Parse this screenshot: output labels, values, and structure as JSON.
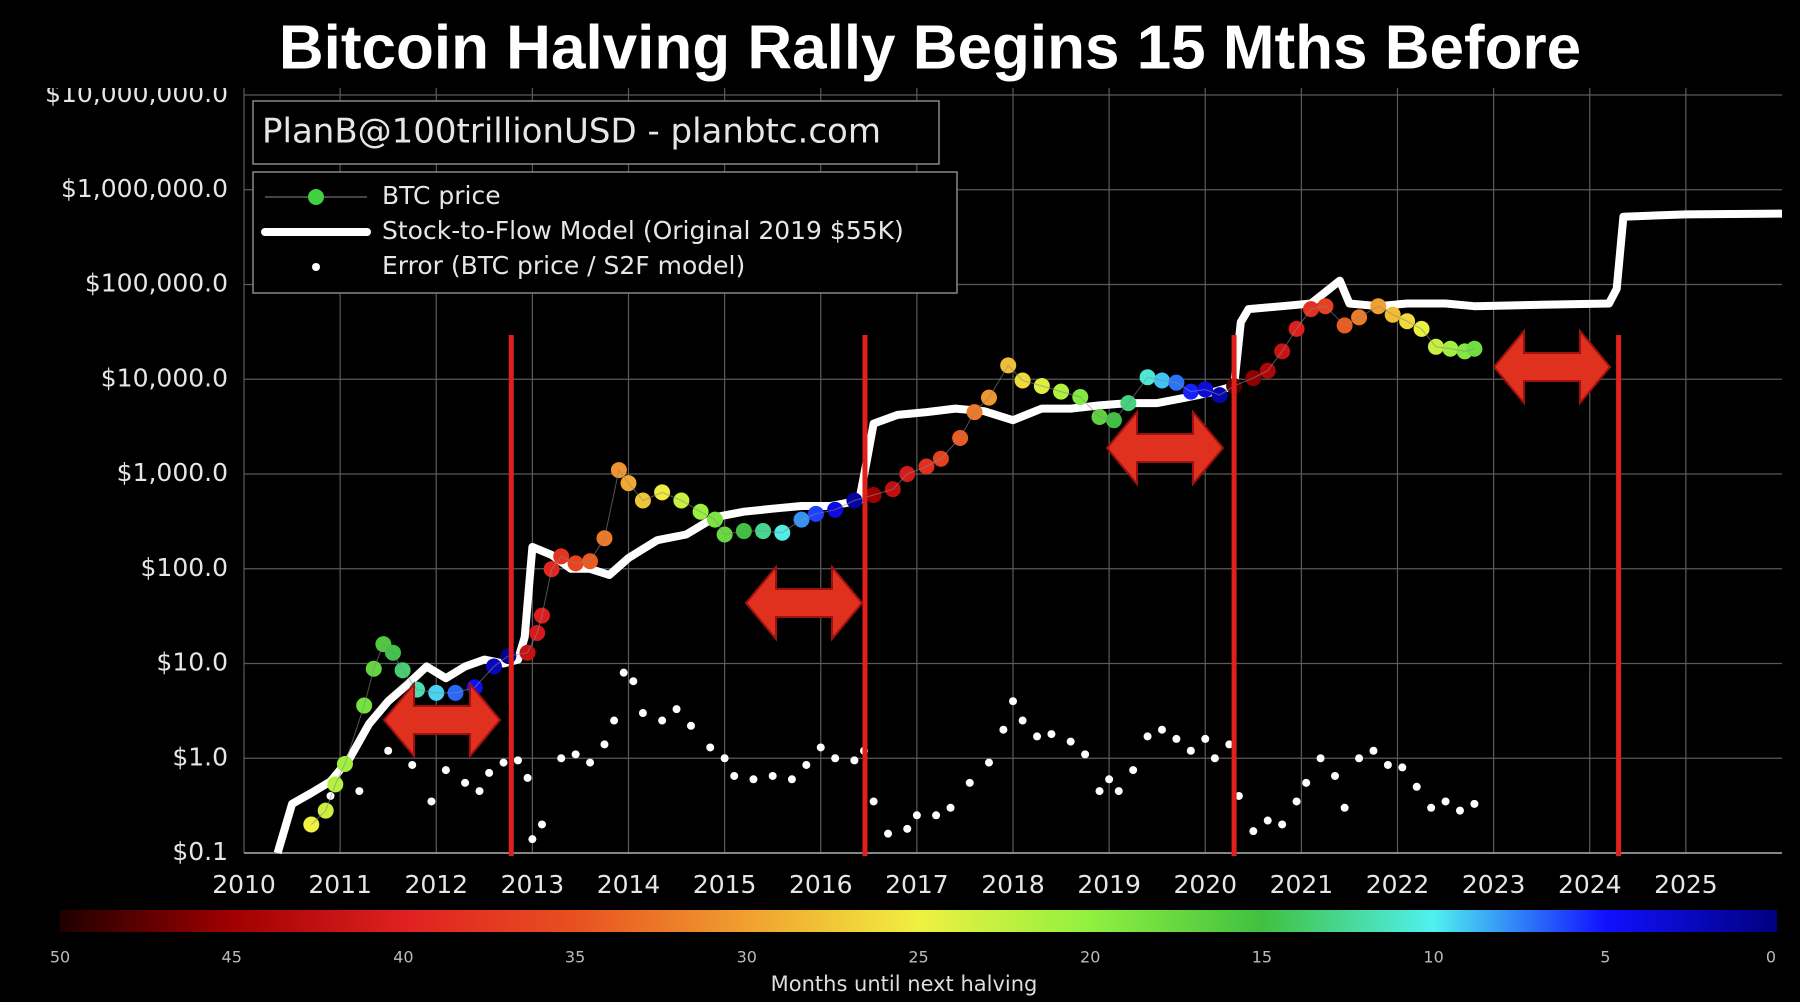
{
  "chart_data": {
    "type": "scatter",
    "title": "Bitcoin Halving Rally Begins 15 Mths Before",
    "watermark": "PlanB@100trillionUSD  -  planbtc.com",
    "log_y": true,
    "grid": true,
    "legend": "upper left",
    "xlim": [
      2010,
      2026
    ],
    "xticks": [
      2010,
      2011,
      2012,
      2013,
      2014,
      2015,
      2016,
      2017,
      2018,
      2019,
      2020,
      2021,
      2022,
      2023,
      2024,
      2025
    ],
    "ylim": [
      0.1,
      10000000
    ],
    "yticks": [
      {
        "value": 0.1,
        "label": "$0.1"
      },
      {
        "value": 1,
        "label": "$1.0"
      },
      {
        "value": 10,
        "label": "$10.0"
      },
      {
        "value": 100,
        "label": "$100.0"
      },
      {
        "value": 1000,
        "label": "$1,000.0"
      },
      {
        "value": 10000,
        "label": "$10,000.0"
      },
      {
        "value": 100000,
        "label": "$100,000.0"
      },
      {
        "value": 1000000,
        "label": "$1,000,000.0"
      },
      {
        "value": 10000000,
        "label": "$10,000,000.0"
      }
    ],
    "halvings": [
      2012.78,
      2016.46,
      2020.3,
      2024.3
    ],
    "halving_color": "#e0201b",
    "colorbar": {
      "label": "Months until next halving",
      "lim": [
        50,
        0
      ],
      "ticks": [
        50,
        45,
        40,
        35,
        30,
        25,
        20,
        15,
        10,
        5,
        0
      ],
      "colors": [
        "#200000",
        "#a00000",
        "#e02020",
        "#e85020",
        "#f0a030",
        "#f0f040",
        "#90f040",
        "#40c040",
        "#50f0f0",
        "#1010ff",
        "#000080"
      ]
    },
    "series": [
      {
        "name": "BTC price",
        "type": "scatter",
        "color": "#3fd13f",
        "x": [
          2010.7,
          2010.85,
          2010.95,
          2011.05,
          2011.25,
          2011.35,
          2011.45,
          2011.55,
          2011.65,
          2011.8,
          2012.0,
          2012.2,
          2012.4,
          2012.6,
          2012.75,
          2012.95,
          2013.05,
          2013.1,
          2013.2,
          2013.3,
          2013.45,
          2013.6,
          2013.75,
          2013.9,
          2014.0,
          2014.15,
          2014.35,
          2014.55,
          2014.75,
          2014.9,
          2015.0,
          2015.2,
          2015.4,
          2015.6,
          2015.8,
          2015.95,
          2016.15,
          2016.35,
          2016.55,
          2016.75,
          2016.9,
          2017.1,
          2017.25,
          2017.45,
          2017.6,
          2017.75,
          2017.95,
          2018.1,
          2018.3,
          2018.5,
          2018.7,
          2018.9,
          2019.05,
          2019.2,
          2019.4,
          2019.55,
          2019.7,
          2019.85,
          2020.0,
          2020.15,
          2020.3,
          2020.5,
          2020.65,
          2020.8,
          2020.95,
          2021.1,
          2021.25,
          2021.45,
          2021.6,
          2021.8,
          2021.95,
          2022.1,
          2022.25,
          2022.4,
          2022.55,
          2022.7,
          2022.8
        ],
        "values": [
          0.2,
          0.28,
          0.53,
          0.87,
          3.6,
          8.8,
          16,
          13,
          8.5,
          5.3,
          4.9,
          4.9,
          5.6,
          9.3,
          12,
          13,
          21,
          32,
          99,
          135,
          114,
          120,
          210,
          1100,
          800,
          525,
          640,
          525,
          400,
          330,
          230,
          250,
          250,
          240,
          330,
          380,
          420,
          525,
          600,
          690,
          1000,
          1200,
          1450,
          2400,
          4500,
          6400,
          14000,
          9700,
          8500,
          7400,
          6500,
          4000,
          3700,
          5600,
          10500,
          9700,
          9200,
          7400,
          7800,
          6800,
          8500,
          10300,
          12300,
          19700,
          34000,
          55000,
          59000,
          37000,
          45000,
          59000,
          48000,
          41000,
          34000,
          22000,
          21000,
          19700,
          21000
        ]
      },
      {
        "name": "Stock-to-Flow Model (Original 2019 $55K)",
        "type": "line",
        "color": "#ffffff",
        "x": [
          2010.35,
          2010.5,
          2010.7,
          2010.9,
          2011.1,
          2011.3,
          2011.5,
          2011.7,
          2011.9,
          2012.1,
          2012.3,
          2012.5,
          2012.7,
          2012.85,
          2012.92,
          2013.0,
          2013.2,
          2013.4,
          2013.6,
          2013.8,
          2014.0,
          2014.3,
          2014.6,
          2014.9,
          2015.2,
          2015.5,
          2015.8,
          2016.1,
          2016.4,
          2016.48,
          2016.55,
          2016.8,
          2017.1,
          2017.4,
          2017.7,
          2018.0,
          2018.3,
          2018.6,
          2018.9,
          2019.2,
          2019.5,
          2019.8,
          2020.1,
          2020.3,
          2020.37,
          2020.45,
          2020.8,
          2021.1,
          2021.4,
          2021.5,
          2021.8,
          2022.1,
          2022.5,
          2022.8,
          2023.5,
          2024.2,
          2024.28,
          2024.35,
          2025.0,
          2026.0
        ],
        "values": [
          0.1,
          0.33,
          0.43,
          0.57,
          1,
          2.3,
          4,
          6,
          9.3,
          7,
          9.3,
          11,
          10,
          11,
          19,
          170,
          140,
          100,
          100,
          86,
          130,
          200,
          230,
          350,
          400,
          430,
          460,
          460,
          525,
          1400,
          3400,
          4200,
          4500,
          4900,
          4600,
          3700,
          4900,
          4900,
          5300,
          5600,
          5600,
          6400,
          7400,
          8500,
          40000,
          55000,
          59000,
          63000,
          110000,
          63000,
          59000,
          63000,
          63000,
          59000,
          61000,
          63000,
          90000,
          520000,
          550000,
          560000
        ]
      },
      {
        "name": "Error (BTC price / S2F model)",
        "type": "scatter",
        "color": "#ffffff",
        "x": [
          2010.9,
          2011.2,
          2011.5,
          2011.75,
          2011.95,
          2012.1,
          2012.3,
          2012.45,
          2012.55,
          2012.7,
          2012.85,
          2012.95,
          2013.0,
          2013.1,
          2013.3,
          2013.45,
          2013.6,
          2013.75,
          2013.85,
          2013.95,
          2014.05,
          2014.15,
          2014.35,
          2014.5,
          2014.65,
          2014.85,
          2015.0,
          2015.1,
          2015.3,
          2015.5,
          2015.7,
          2015.85,
          2016.0,
          2016.15,
          2016.35,
          2016.45,
          2016.55,
          2016.7,
          2016.9,
          2017.0,
          2017.2,
          2017.35,
          2017.55,
          2017.75,
          2017.9,
          2018.0,
          2018.1,
          2018.25,
          2018.4,
          2018.6,
          2018.75,
          2018.9,
          2019.0,
          2019.1,
          2019.25,
          2019.4,
          2019.55,
          2019.7,
          2019.85,
          2020.0,
          2020.1,
          2020.25,
          2020.35,
          2020.5,
          2020.65,
          2020.8,
          2020.95,
          2021.05,
          2021.2,
          2021.35,
          2021.45,
          2021.6,
          2021.75,
          2021.9,
          2022.05,
          2022.2,
          2022.35,
          2022.5,
          2022.65,
          2022.8
        ],
        "values": [
          0.4,
          0.45,
          1.2,
          0.85,
          0.35,
          0.75,
          0.55,
          0.45,
          0.7,
          0.9,
          0.95,
          0.62,
          0.14,
          0.2,
          1.0,
          1.1,
          0.9,
          1.4,
          2.5,
          8,
          6.5,
          3.0,
          2.5,
          3.3,
          2.2,
          1.3,
          1.0,
          0.65,
          0.6,
          0.65,
          0.6,
          0.85,
          1.3,
          1.0,
          0.95,
          1.2,
          0.35,
          0.16,
          0.18,
          0.25,
          0.25,
          0.3,
          0.55,
          0.9,
          2.0,
          4.0,
          2.5,
          1.7,
          1.8,
          1.5,
          1.1,
          0.45,
          0.6,
          0.45,
          0.75,
          1.7,
          2.0,
          1.6,
          1.2,
          1.6,
          1.0,
          1.4,
          0.4,
          0.17,
          0.22,
          0.2,
          0.35,
          0.55,
          1.0,
          0.65,
          0.3,
          1.0,
          1.2,
          0.85,
          0.8,
          0.5,
          0.3,
          0.35,
          0.28,
          0.33
        ]
      }
    ]
  }
}
